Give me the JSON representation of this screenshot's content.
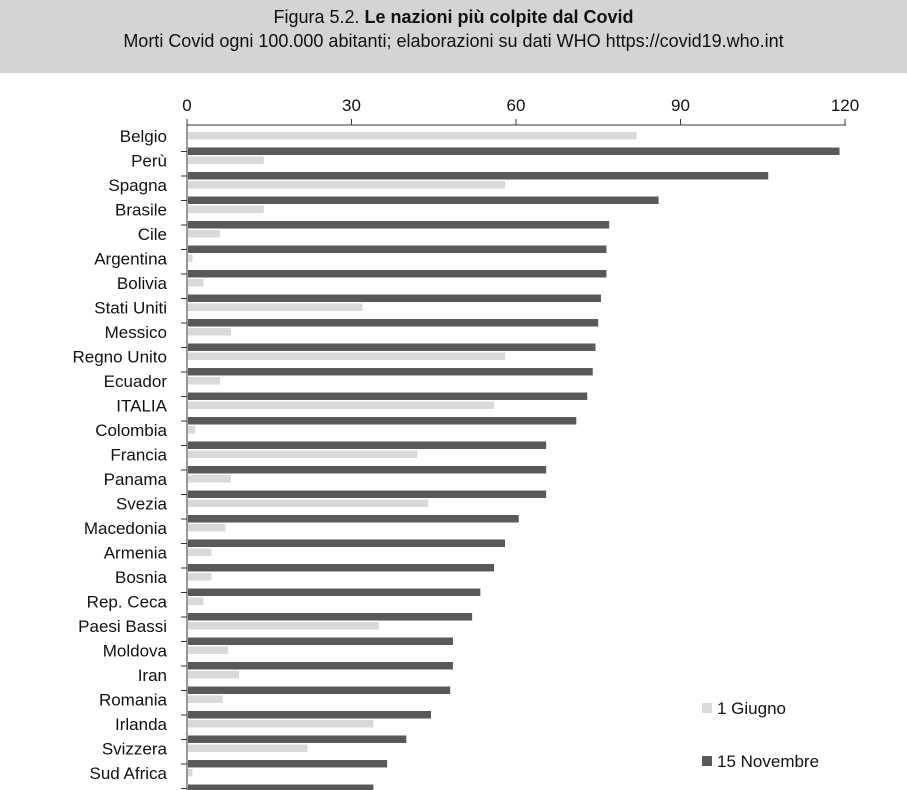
{
  "header": {
    "title_prefix": "Figura 5.2.",
    "title_bold": "Le nazioni più colpite dal Covid",
    "subtitle": "Morti Covid ogni 100.000 abitanti; elaborazioni su dati WHO https://covid19.who.int"
  },
  "chart_data": {
    "type": "bar",
    "orientation": "horizontal",
    "title": "Le nazioni più colpite dal Covid",
    "subtitle": "Morti Covid ogni 100.000 abitanti; elaborazioni su dati WHO https://covid19.who.int",
    "xlabel": "",
    "ylabel": "",
    "xlim": [
      0,
      120
    ],
    "x_ticks": [
      0,
      30,
      60,
      90,
      120
    ],
    "x_axis_position": "top",
    "grid": false,
    "legend_position": "bottom-right",
    "categories": [
      "Belgio",
      "Perù",
      "Spagna",
      "Brasile",
      "Cile",
      "Argentina",
      "Bolivia",
      "Stati Uniti",
      "Messico",
      "Regno Unito",
      "Ecuador",
      "ITALIA",
      "Colombia",
      "Francia",
      "Panama",
      "Svezia",
      "Macedonia",
      "Armenia",
      "Bosnia",
      "Rep. Ceca",
      "Paesi Bassi",
      "Moldova",
      "Iran",
      "Romania",
      "Irlanda",
      "Svizzera",
      "Sud Africa"
    ],
    "series": [
      {
        "name": "1 Giugno",
        "color": "#d9d9d9",
        "values": [
          82,
          14,
          58,
          14,
          6,
          1,
          3,
          32,
          8,
          58,
          6,
          56,
          1.5,
          42,
          8,
          44,
          7,
          4.5,
          4.5,
          3,
          35,
          7.5,
          9.5,
          6.5,
          34,
          22,
          1
        ]
      },
      {
        "name": "15 Novembre",
        "color": "#595959",
        "values": [
          119,
          106,
          86,
          77,
          76.5,
          76.5,
          75.5,
          75,
          74.5,
          74,
          73,
          71,
          65.5,
          65.5,
          65.5,
          60.5,
          58,
          56,
          53.5,
          52,
          48.5,
          48.5,
          48,
          44.5,
          40,
          36.5,
          34
        ]
      }
    ]
  }
}
